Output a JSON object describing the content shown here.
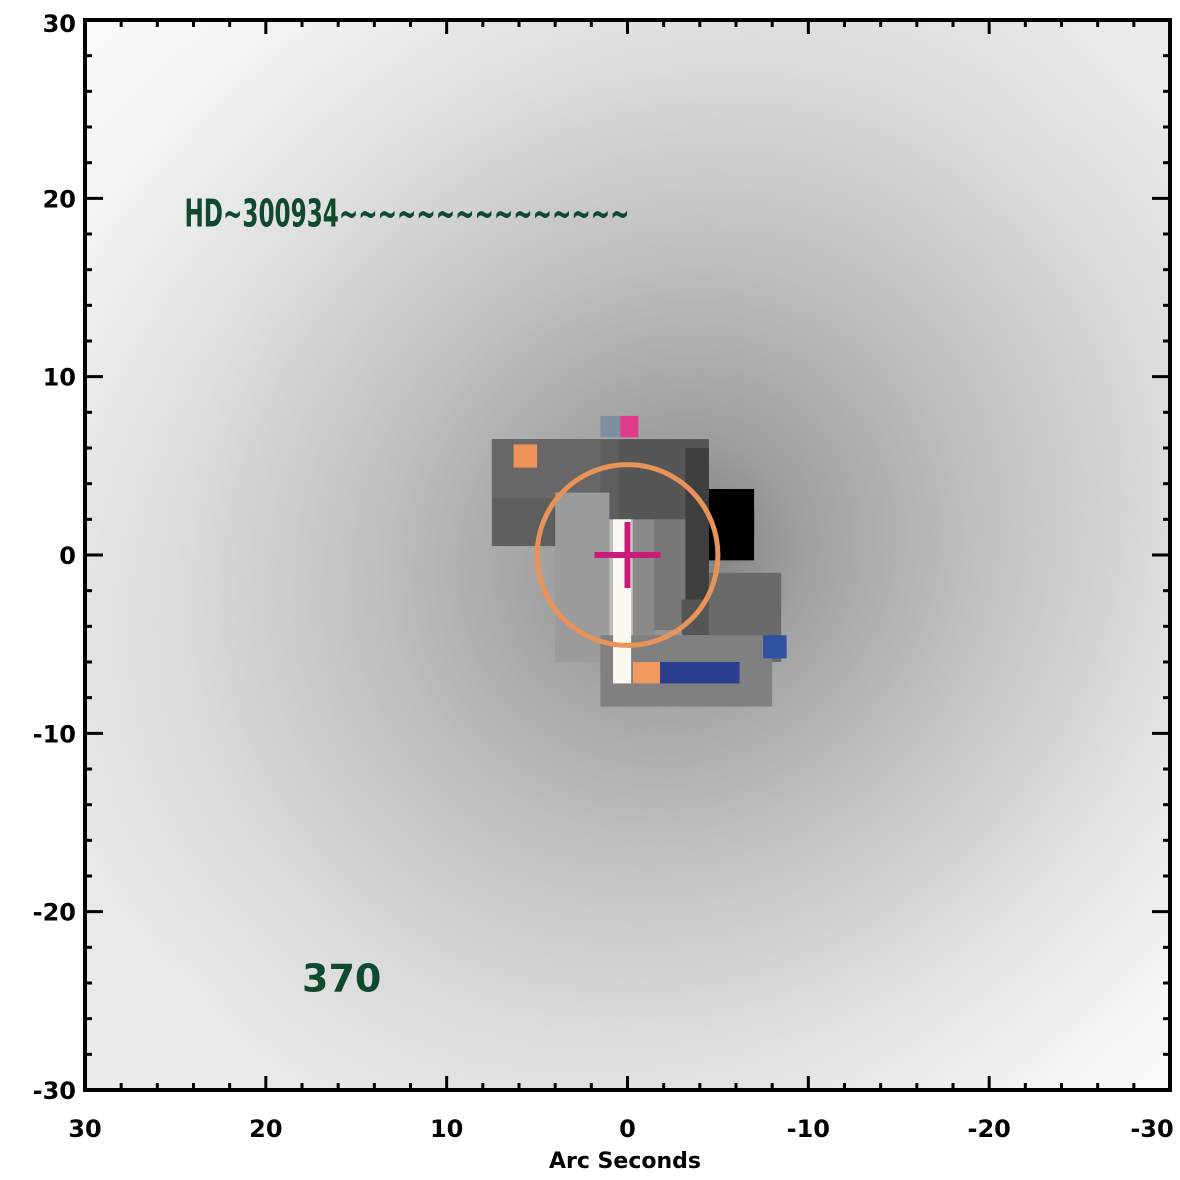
{
  "chart_data": {
    "type": "image",
    "xlabel": "Arc Seconds",
    "ylabel": "",
    "xlim": [
      30,
      -30
    ],
    "ylim": [
      -30,
      30
    ],
    "x_ticks": [
      30,
      20,
      10,
      0,
      -10,
      -20,
      -30
    ],
    "y_ticks": [
      30,
      20,
      10,
      0,
      -10,
      -20,
      -30
    ],
    "x_tick_labels": [
      "30",
      "20",
      "10",
      "0",
      "-10",
      "-20",
      "-30"
    ],
    "y_tick_labels": [
      "30",
      "20",
      "10",
      "0",
      "-10",
      "-20",
      "-30"
    ],
    "annotations": [
      {
        "text": "HD~300934~~~~~~~~~~~~~~~",
        "x": 24.5,
        "y": 19.2,
        "color": "#0f4a2e"
      },
      {
        "text": "370",
        "x": 18,
        "y": -23.7,
        "color": "#0f4a2e"
      }
    ],
    "target_circle": {
      "cx": 0,
      "cy": 0,
      "r": 5,
      "color": "#e8935a"
    },
    "cross_marker": {
      "x": 0,
      "y": 0,
      "color": "#cc1a7a"
    },
    "colors": {
      "background_image": "grayscale",
      "frame": "#000000",
      "annotation": "#0f4a2e"
    },
    "image_blocks": [
      {
        "x0": 7.5,
        "x1": 0.5,
        "y0": 6.5,
        "y1": 0.5,
        "color": "#5e5e5e"
      },
      {
        "x0": 7.5,
        "x1": 1.5,
        "y0": 6.5,
        "y1": 3.2,
        "color": "#676767"
      },
      {
        "x0": 0.5,
        "x1": -4.5,
        "y0": 6.5,
        "y1": -4.2,
        "color": "#565656"
      },
      {
        "x0": -3.2,
        "x1": -4.5,
        "y0": 6.0,
        "y1": -4.0,
        "color": "#3e3e3e"
      },
      {
        "x0": 4.0,
        "x1": 1.0,
        "y0": 3.5,
        "y1": -6.0,
        "color": "#9b9b9b"
      },
      {
        "x0": 1.0,
        "x1": -0.3,
        "y0": 2.0,
        "y1": -7.3,
        "color": "#bdbdbd"
      },
      {
        "x0": -0.3,
        "x1": -1.5,
        "y0": 2.0,
        "y1": -6.5,
        "color": "#8a8a8a"
      },
      {
        "x0": -1.5,
        "x1": -3.2,
        "y0": 2.0,
        "y1": -4.2,
        "color": "#777777"
      },
      {
        "x0": -3.0,
        "x1": -5.5,
        "y0": -2.5,
        "y1": -4.5,
        "color": "#555555"
      },
      {
        "x0": -4.5,
        "x1": -8.5,
        "y0": -1.0,
        "y1": -6.0,
        "color": "#6a6a6a"
      },
      {
        "x0": 1.5,
        "x1": -8.0,
        "y0": -4.5,
        "y1": -8.5,
        "color": "#808080"
      },
      {
        "x0": -4.5,
        "x1": -7.0,
        "y0": 3.7,
        "y1": -0.3,
        "color": "#000000"
      },
      {
        "x0": -6.5,
        "x1": -7.0,
        "y0": 2.5,
        "y1": 1.0,
        "color": "#000000"
      },
      {
        "x0": 0.8,
        "x1": -0.2,
        "y0": 2.0,
        "y1": -7.2,
        "color": "#fdf7f2"
      },
      {
        "x0": 1.5,
        "x1": -0.3,
        "y0": 7.8,
        "y1": 6.6,
        "color": "#7f8fa3"
      },
      {
        "x0": 0.4,
        "x1": -0.6,
        "y0": 7.8,
        "y1": 6.6,
        "color": "#e23a8a"
      },
      {
        "x0": 6.3,
        "x1": 5.0,
        "y0": 6.2,
        "y1": 4.9,
        "color": "#f0935a"
      },
      {
        "x0": -0.3,
        "x1": -1.8,
        "y0": -6.0,
        "y1": -7.2,
        "color": "#f09a60"
      },
      {
        "x0": -1.8,
        "x1": -6.2,
        "y0": -6.0,
        "y1": -7.2,
        "color": "#2a3f8f"
      },
      {
        "x0": -7.5,
        "x1": -8.8,
        "y0": -4.5,
        "y1": -5.8,
        "color": "#2f52a3"
      }
    ]
  }
}
